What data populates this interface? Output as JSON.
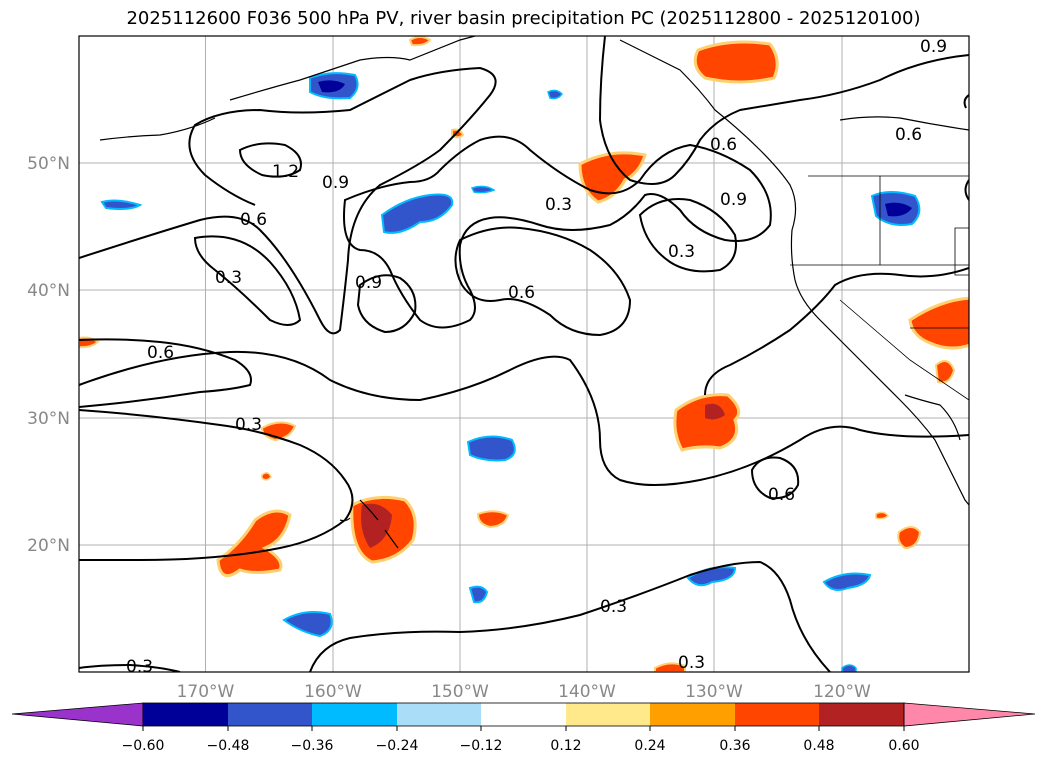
{
  "title": "2025112600 F036 500 hPa PV, river basin precipitation PC (2025112800 - 2025120100)",
  "map": {
    "extent": {
      "lon_min": -180,
      "lon_max": -110,
      "lat_min": 10,
      "lat_max": 60
    },
    "lat_ticks": [
      {
        "value": 20,
        "label": "20°N"
      },
      {
        "value": 30,
        "label": "30°N"
      },
      {
        "value": 40,
        "label": "40°N"
      },
      {
        "value": 50,
        "label": "50°N"
      }
    ],
    "lon_ticks": [
      {
        "value": -170,
        "label": "170°W"
      },
      {
        "value": -160,
        "label": "160°W"
      },
      {
        "value": -150,
        "label": "150°W"
      },
      {
        "value": -140,
        "label": "140°W"
      },
      {
        "value": -130,
        "label": "130°W"
      },
      {
        "value": -120,
        "label": "120°W"
      }
    ],
    "gridlines": true,
    "contour_labels": [
      "0.9",
      "0.6",
      "0.6",
      "1.2",
      "0.9",
      "0.6",
      "0.3",
      "0.9",
      "0.3",
      "0.3",
      "0.9",
      "0.6",
      "0.6",
      "0.3",
      "0.6",
      "0.3",
      "0.3",
      "0.3"
    ]
  },
  "colorbar": {
    "ticks": [
      "−0.60",
      "−0.48",
      "−0.36",
      "−0.24",
      "−0.12",
      "0.12",
      "0.24",
      "0.36",
      "0.48",
      "0.60"
    ],
    "colors": [
      "#9933cc",
      "#000099",
      "#3355cc",
      "#00bbff",
      "#aaddf7",
      "#ffffff",
      "#ffe98a",
      "#ffa000",
      "#ff4500",
      "#b22222",
      "#ff88aa"
    ]
  }
}
